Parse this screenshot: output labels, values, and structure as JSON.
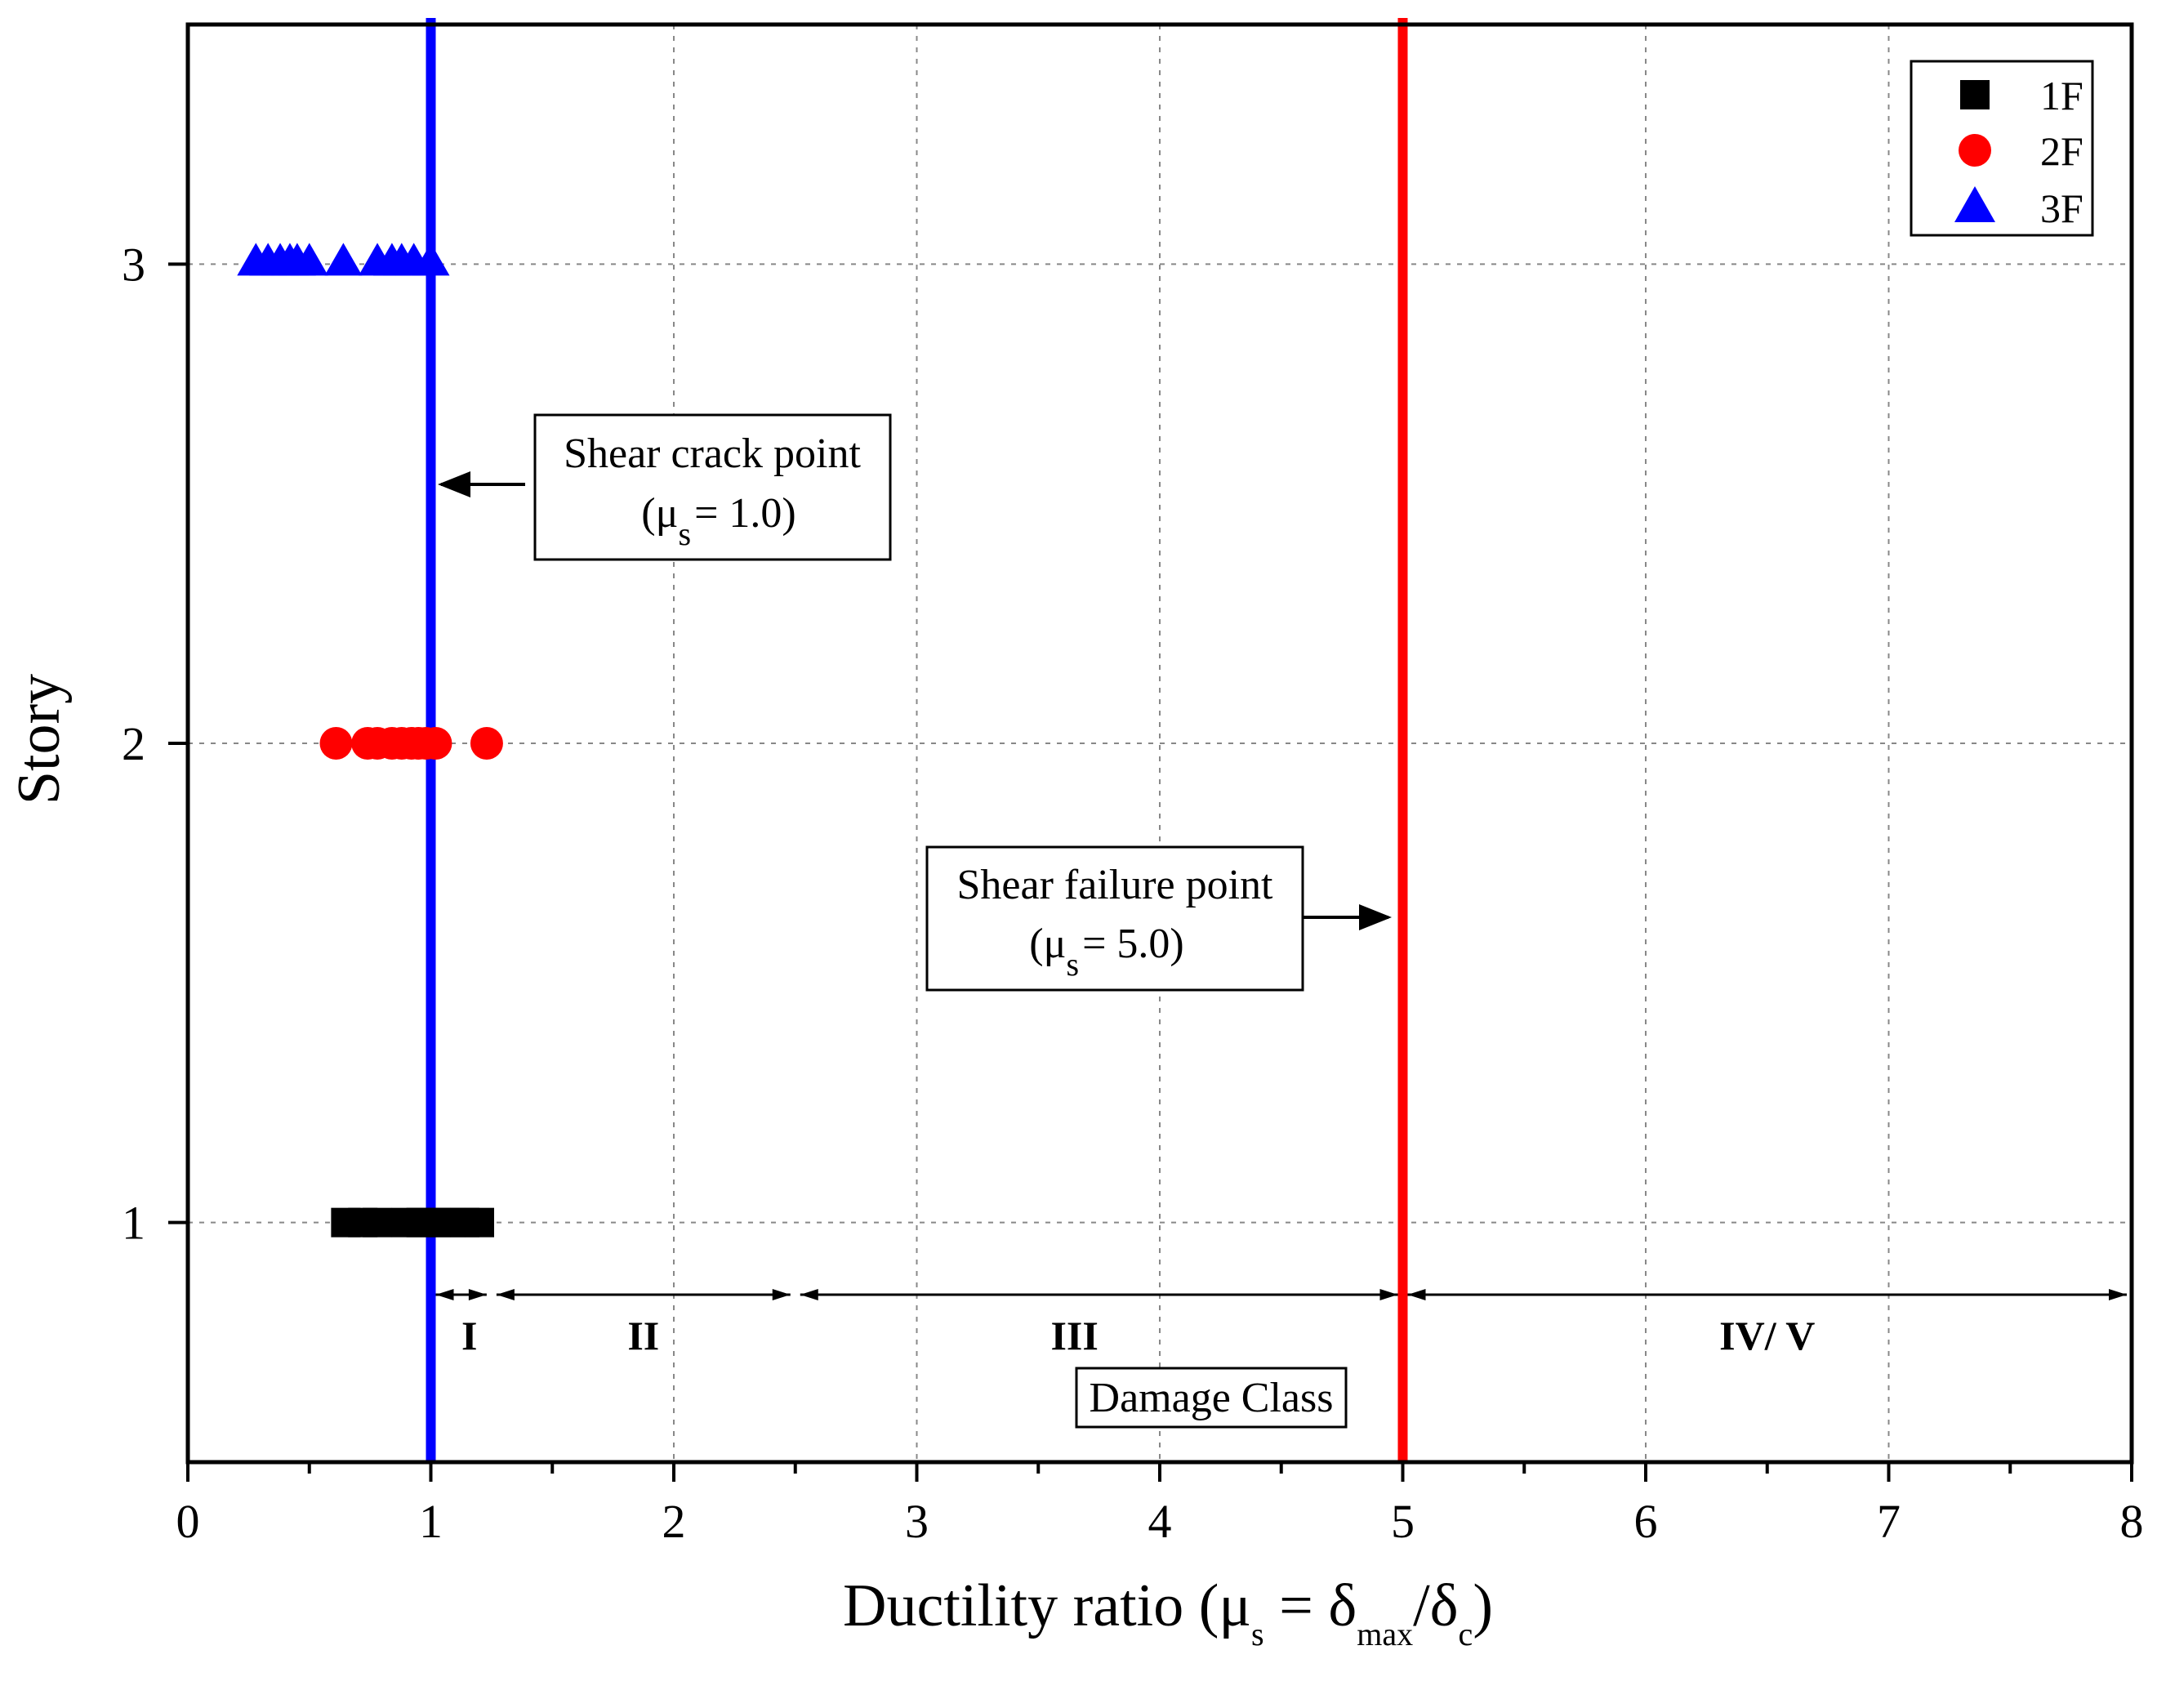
{
  "chart_data": {
    "type": "scatter",
    "xlabel": {
      "main": "Ductility ratio (μ",
      "sub_s": "s",
      "equals": " = δ",
      "sub_max": "max",
      "slash": "/δ",
      "sub_c": "c",
      "close": ")"
    },
    "ylabel": "Story",
    "xlim": [
      0,
      8
    ],
    "ylim": [
      0.5,
      3.5
    ],
    "x_ticks": [
      0,
      1,
      2,
      3,
      4,
      5,
      6,
      7,
      8
    ],
    "x_tick_labels": [
      "0",
      "1",
      "2",
      "3",
      "4",
      "5",
      "6",
      "7",
      "8"
    ],
    "y_ticks": [
      1,
      2,
      3
    ],
    "y_tick_labels": [
      "1",
      "2",
      "3"
    ],
    "grid": true,
    "legend_position": "top-right",
    "series": [
      {
        "name": "1F",
        "marker": "square",
        "color": "#000000",
        "points": [
          {
            "x": 0.65,
            "y": 1
          },
          {
            "x": 0.72,
            "y": 1
          },
          {
            "x": 0.78,
            "y": 1
          },
          {
            "x": 0.9,
            "y": 1
          },
          {
            "x": 0.96,
            "y": 1
          },
          {
            "x": 1.02,
            "y": 1
          },
          {
            "x": 1.08,
            "y": 1
          },
          {
            "x": 1.14,
            "y": 1
          },
          {
            "x": 1.2,
            "y": 1
          }
        ]
      },
      {
        "name": "2F",
        "marker": "circle",
        "color": "#ff0000",
        "points": [
          {
            "x": 0.61,
            "y": 2
          },
          {
            "x": 0.74,
            "y": 2
          },
          {
            "x": 0.78,
            "y": 2
          },
          {
            "x": 0.84,
            "y": 2
          },
          {
            "x": 0.88,
            "y": 2
          },
          {
            "x": 0.92,
            "y": 2
          },
          {
            "x": 0.95,
            "y": 2
          },
          {
            "x": 0.98,
            "y": 2
          },
          {
            "x": 1.02,
            "y": 2
          },
          {
            "x": 1.23,
            "y": 2
          }
        ]
      },
      {
        "name": "3F",
        "marker": "triangle",
        "color": "#0000ff",
        "points": [
          {
            "x": 0.28,
            "y": 3
          },
          {
            "x": 0.33,
            "y": 3
          },
          {
            "x": 0.38,
            "y": 3
          },
          {
            "x": 0.42,
            "y": 3
          },
          {
            "x": 0.45,
            "y": 3
          },
          {
            "x": 0.5,
            "y": 3
          },
          {
            "x": 0.64,
            "y": 3
          },
          {
            "x": 0.78,
            "y": 3
          },
          {
            "x": 0.84,
            "y": 3
          },
          {
            "x": 0.88,
            "y": 3
          },
          {
            "x": 0.93,
            "y": 3
          },
          {
            "x": 1.0,
            "y": 3
          }
        ]
      }
    ],
    "reference_lines": [
      {
        "name": "shear-crack-line",
        "x": 1.0,
        "color": "#0000ff"
      },
      {
        "name": "shear-failure-line",
        "x": 5.0,
        "color": "#ff0000"
      }
    ],
    "annotations": [
      {
        "name": "shear-crack-annotation",
        "title": "Shear crack point",
        "value_prefix": "(μ",
        "value_sub": "s",
        "value_suffix": "= 1.0)"
      },
      {
        "name": "shear-failure-annotation",
        "title": "Shear failure point",
        "value_prefix": "(μ",
        "value_sub": "s",
        "value_suffix": "= 5.0)"
      }
    ],
    "damage_classes": {
      "title": "Damage Class",
      "ranges": [
        {
          "label": "I",
          "from": 1.0,
          "to": 1.25
        },
        {
          "label": "II",
          "from": 1.25,
          "to": 2.5
        },
        {
          "label": "III",
          "from": 2.5,
          "to": 5.0
        },
        {
          "label": "IV/ V",
          "from": 5.0,
          "to": 8.0
        }
      ]
    }
  }
}
